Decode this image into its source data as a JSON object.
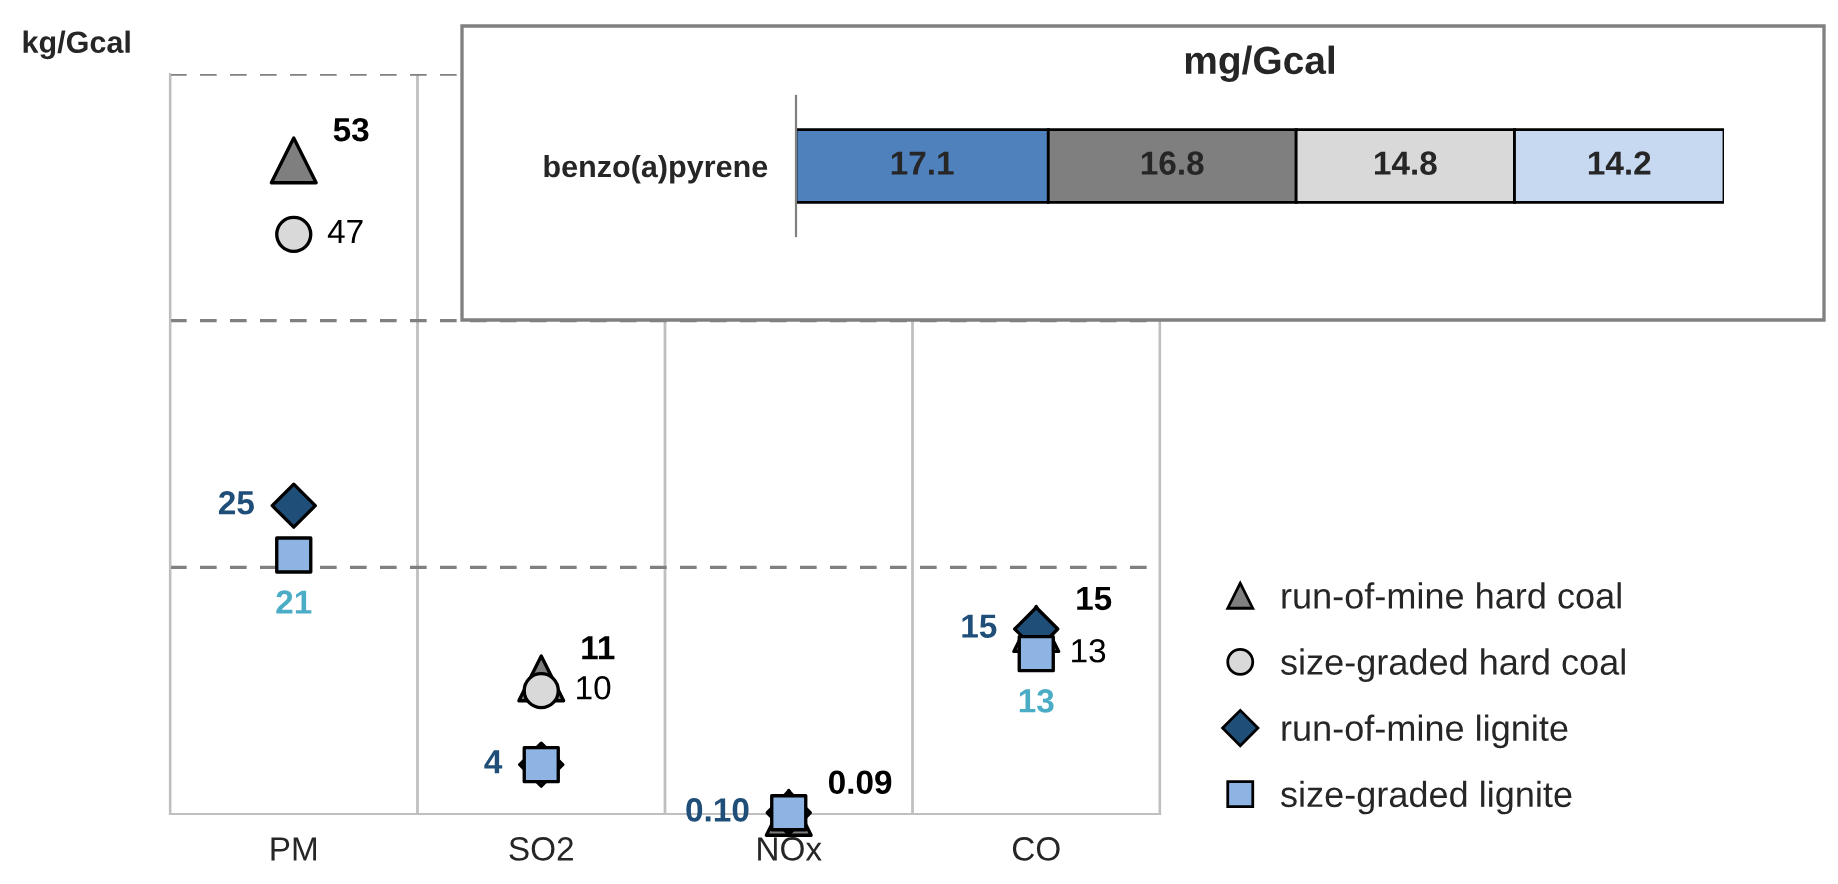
{
  "chart_data": [
    {
      "type": "scatter",
      "ylabel": "kg/Gcal",
      "categories": [
        "PM",
        "SO2",
        "NOx",
        "CO"
      ],
      "ylim": [
        0,
        60
      ],
      "yticks": [
        {
          "value": 20,
          "label": null
        },
        {
          "value": 40,
          "label": null
        },
        {
          "value": 60,
          "label": null
        }
      ],
      "grid": true,
      "legend": "bottom right",
      "annotations": [
        {
          "text": "13",
          "x": "CO",
          "y": 13
        }
      ],
      "series": [
        {
          "name": "run-of-mine hard coal",
          "color": "#7f7f7f",
          "marker": "triangle",
          "values": [
            53,
            11,
            0.09,
            15
          ],
          "value_labels": [
            "53",
            "11",
            "0.09",
            "15"
          ]
        },
        {
          "name": "size-graded hard coal",
          "color": "#d9d9d9",
          "marker": "circle",
          "values": [
            47,
            10,
            null,
            null
          ],
          "value_labels": [
            "47",
            "10",
            null,
            null
          ]
        },
        {
          "name": "run-of-mine lignite",
          "color": "#1f4e79",
          "marker": "diamond",
          "values": [
            25,
            4,
            0.1,
            15
          ],
          "value_labels": [
            "25",
            "4",
            "0.10",
            "15"
          ]
        },
        {
          "name": "size-graded lignite",
          "color": "#8db4e2",
          "marker": "square",
          "values": [
            21,
            4,
            0.1,
            13
          ],
          "value_labels": [
            "21",
            null,
            null,
            "13"
          ]
        }
      ]
    },
    {
      "type": "bar",
      "orientation": "horizontal",
      "stacked": true,
      "title": "mg/Gcal",
      "categories": [
        "benzo(a)pyrene"
      ],
      "data_labels": true,
      "series": [
        {
          "color": "#4f81bd",
          "values": [
            17.1
          ]
        },
        {
          "color": "#7f7f7f",
          "values": [
            16.8
          ]
        },
        {
          "color": "#d9d9d9",
          "values": [
            14.8
          ]
        },
        {
          "color": "#c6d9f1",
          "values": [
            14.2
          ]
        }
      ]
    }
  ]
}
